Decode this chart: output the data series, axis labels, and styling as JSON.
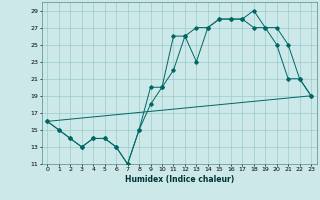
{
  "xlabel": "Humidex (Indice chaleur)",
  "bg_color": "#cce8e8",
  "grid_color": "#99cccc",
  "line_color": "#006666",
  "xlim": [
    -0.5,
    23.5
  ],
  "ylim": [
    11,
    30
  ],
  "yticks": [
    11,
    13,
    15,
    17,
    19,
    21,
    23,
    25,
    27,
    29
  ],
  "xticks": [
    0,
    1,
    2,
    3,
    4,
    5,
    6,
    7,
    8,
    9,
    10,
    11,
    12,
    13,
    14,
    15,
    16,
    17,
    18,
    19,
    20,
    21,
    22,
    23
  ],
  "series1_x": [
    0,
    1,
    2,
    3,
    4,
    5,
    6,
    7,
    8,
    9,
    10,
    11,
    12,
    13,
    14,
    15,
    16,
    17,
    18,
    19,
    20,
    21,
    22,
    23
  ],
  "series1_y": [
    16,
    15,
    14,
    13,
    14,
    14,
    13,
    11,
    15,
    18,
    20,
    22,
    26,
    27,
    27,
    28,
    28,
    28,
    29,
    27,
    27,
    25,
    21,
    19
  ],
  "series2_x": [
    0,
    1,
    2,
    3,
    4,
    5,
    6,
    7,
    8,
    9,
    10,
    11,
    12,
    13,
    14,
    15,
    16,
    17,
    18,
    19,
    20,
    21,
    22,
    23
  ],
  "series2_y": [
    16,
    15,
    14,
    13,
    14,
    14,
    13,
    11,
    15,
    20,
    20,
    26,
    26,
    23,
    27,
    28,
    28,
    28,
    27,
    27,
    25,
    21,
    21,
    19
  ],
  "series3_x": [
    0,
    23
  ],
  "series3_y": [
    16,
    19
  ]
}
